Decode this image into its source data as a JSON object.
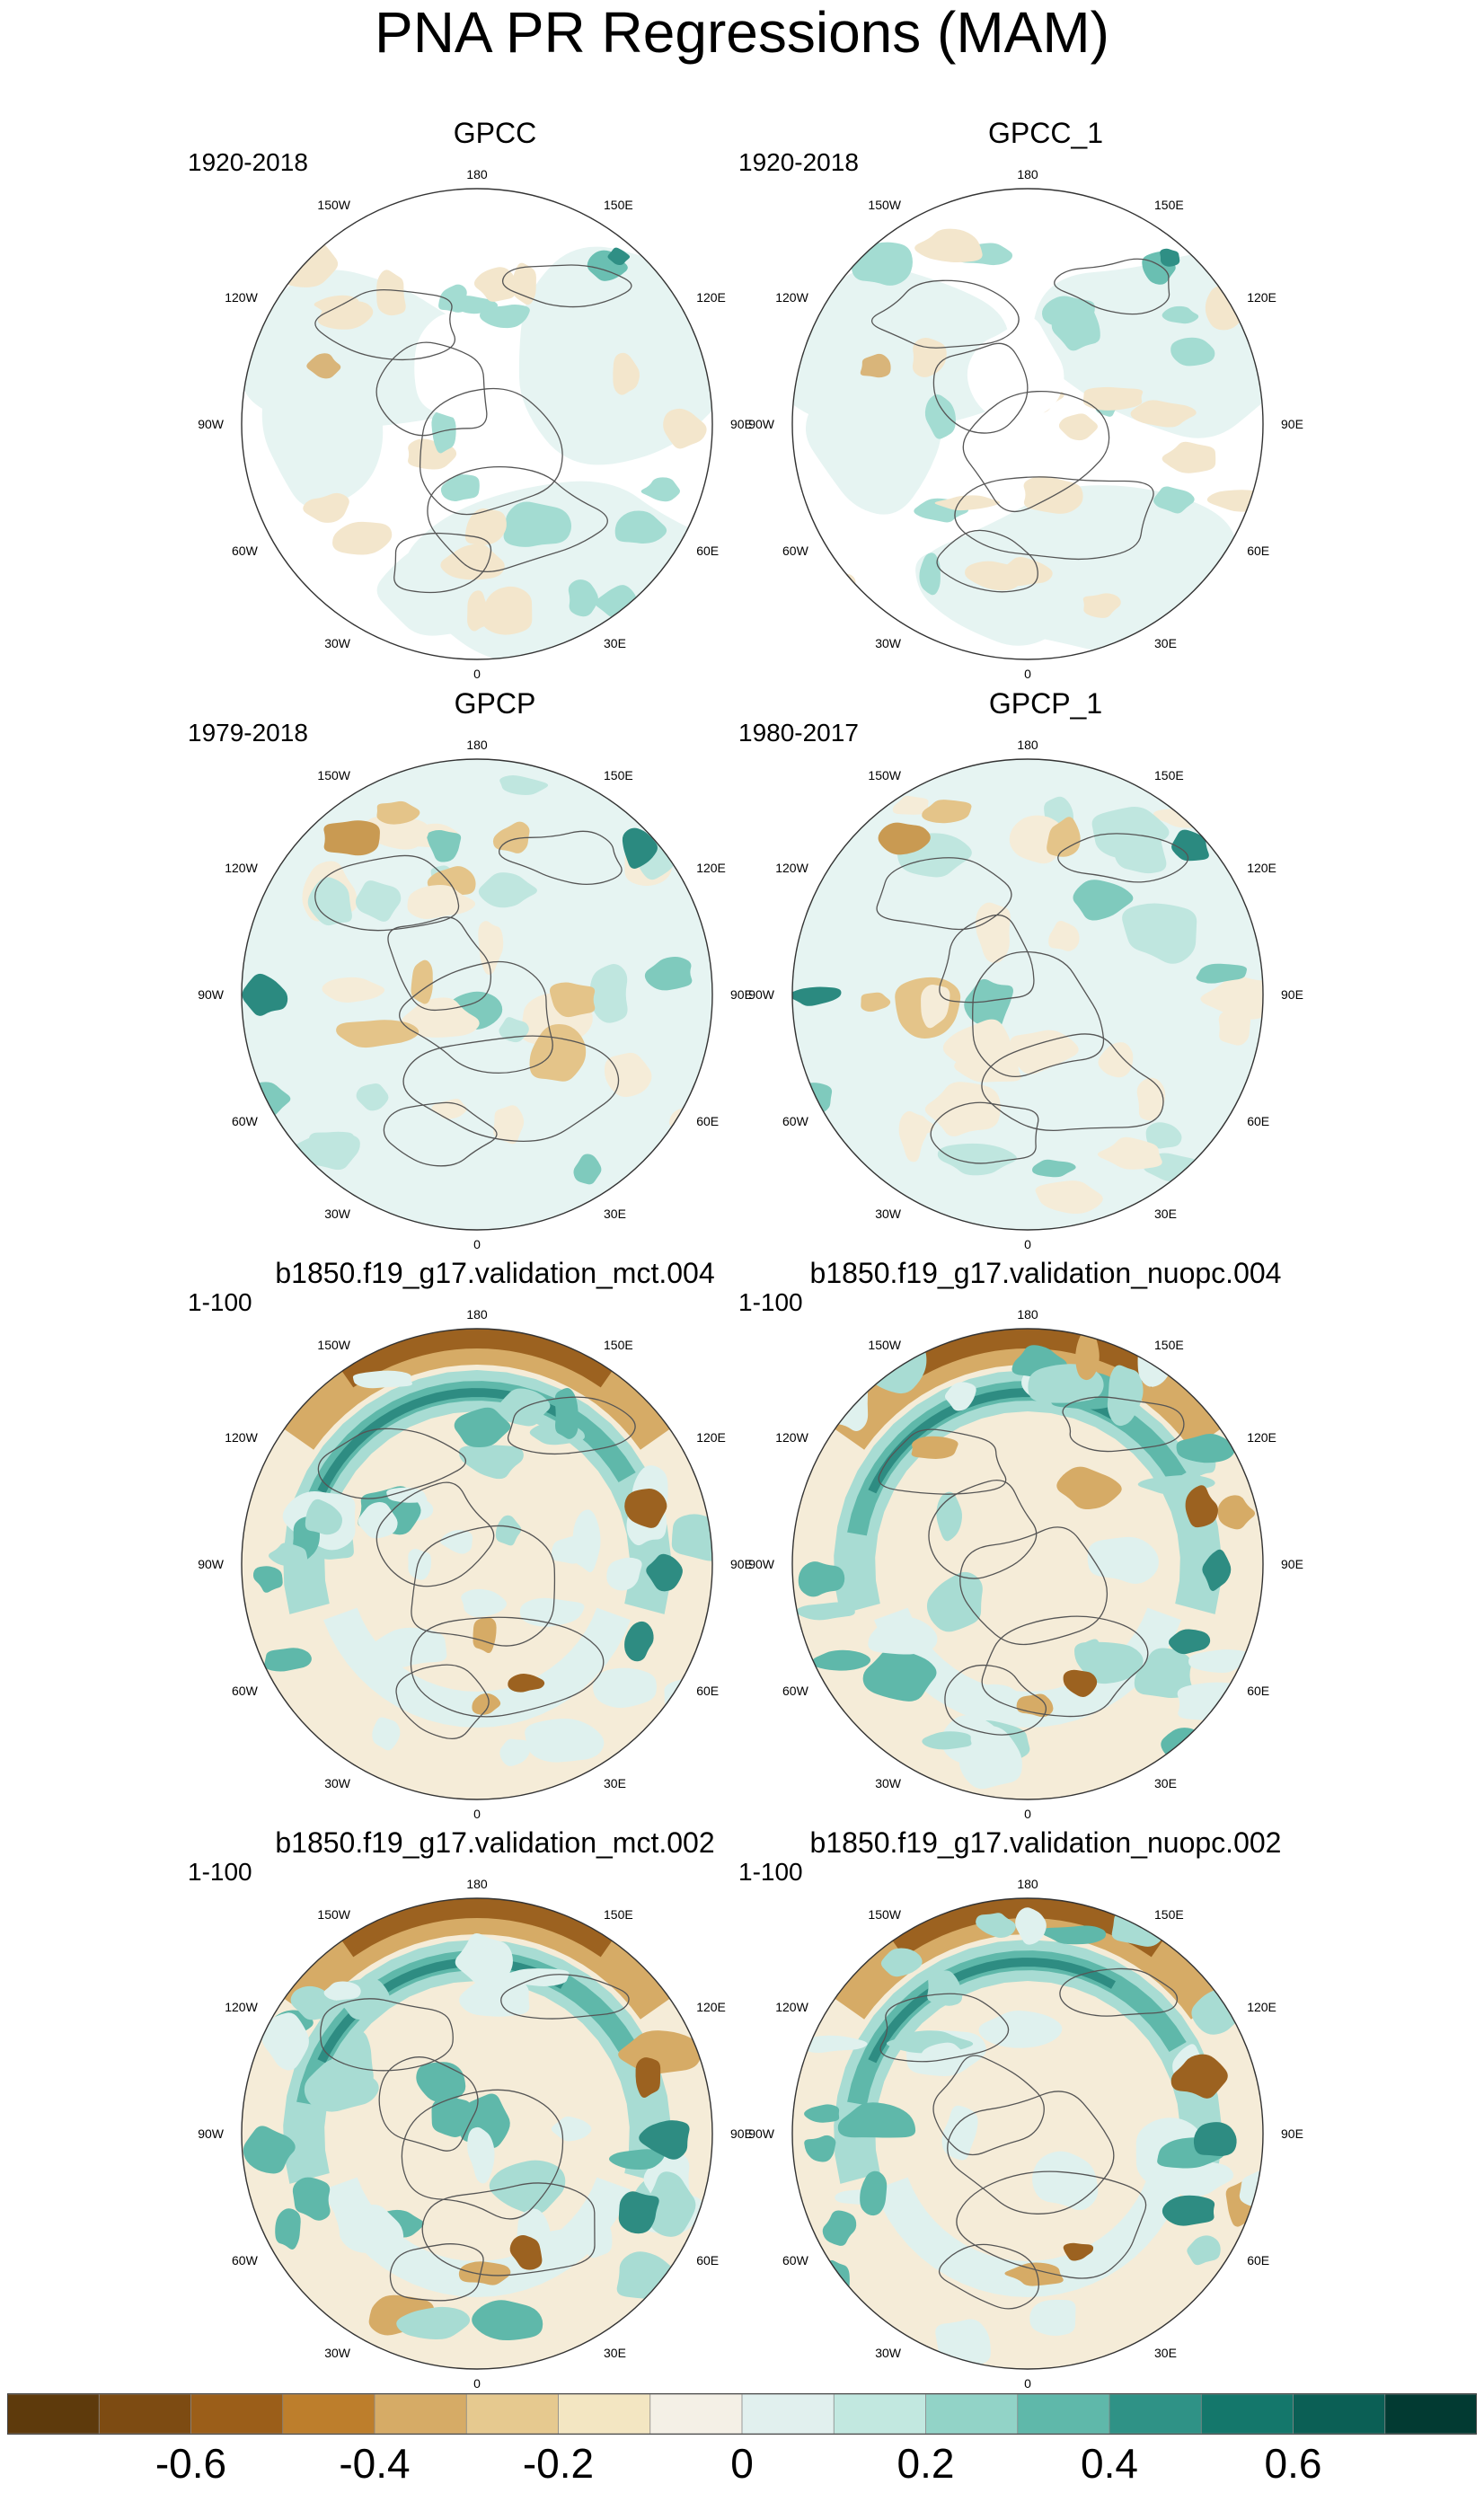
{
  "title": "PNA PR Regressions (MAM)",
  "lon_labels": [
    "180",
    "150E",
    "120E",
    "90E",
    "60E",
    "30E",
    "0",
    "30W",
    "60W",
    "90W",
    "120W",
    "150W"
  ],
  "panels": [
    {
      "title": "GPCC",
      "period": "1920-2018",
      "style": "land_obs",
      "colors": [
        "#e6f4f2",
        "#f3e6cc",
        "#a3dcd2",
        "#6abfb2",
        "#2f8f85",
        "#d9b57a"
      ]
    },
    {
      "title": "GPCC_1",
      "period": "1920-2018",
      "style": "land_obs",
      "colors": [
        "#e6f4f2",
        "#f3e6cc",
        "#a3dcd2",
        "#6abfb2",
        "#2f8f85",
        "#d9b57a"
      ]
    },
    {
      "title": "GPCP",
      "period": "1979-2018",
      "style": "global_obs",
      "colors": [
        "#e6f4f2",
        "#f5ecd8",
        "#bfe6df",
        "#7fcabd",
        "#2b8a80",
        "#e4c489",
        "#c99a52"
      ]
    },
    {
      "title": "GPCP_1",
      "period": "1980-2017",
      "style": "global_obs",
      "colors": [
        "#e6f4f2",
        "#f5ecd8",
        "#bfe6df",
        "#7fcabd",
        "#2b8a80",
        "#e4c489",
        "#c99a52"
      ]
    },
    {
      "title": "b1850.f19_g17.validation_mct.004",
      "period": "1-100",
      "style": "model",
      "colors": [
        "#f5ecd8",
        "#dff1ee",
        "#a8dcd3",
        "#5fb8aa",
        "#2e8c82",
        "#d6ab66",
        "#9c6220"
      ]
    },
    {
      "title": "b1850.f19_g17.validation_nuopc.004",
      "period": "1-100",
      "style": "model",
      "colors": [
        "#f5ecd8",
        "#dff1ee",
        "#a8dcd3",
        "#5fb8aa",
        "#2e8c82",
        "#d6ab66",
        "#9c6220"
      ]
    },
    {
      "title": "b1850.f19_g17.validation_mct.002",
      "period": "1-100",
      "style": "model",
      "colors": [
        "#f5ecd8",
        "#dff1ee",
        "#a8dcd3",
        "#5fb8aa",
        "#2e8c82",
        "#d6ab66",
        "#9c6220"
      ]
    },
    {
      "title": "b1850.f19_g17.validation_nuopc.002",
      "period": "1-100",
      "style": "model",
      "colors": [
        "#f5ecd8",
        "#dff1ee",
        "#a8dcd3",
        "#5fb8aa",
        "#2e8c82",
        "#d6ab66",
        "#9c6220"
      ]
    }
  ],
  "chart_data": {
    "type": "heatmap",
    "title": "PNA PR Regressions (MAM)",
    "projection": "north polar stereographic",
    "panels": [
      "GPCC",
      "GPCC_1",
      "GPCP",
      "GPCP_1",
      "b1850.f19_g17.validation_mct.004",
      "b1850.f19_g17.validation_nuopc.004",
      "b1850.f19_g17.validation_mct.002",
      "b1850.f19_g17.validation_nuopc.002"
    ],
    "periods": [
      "1920-2018",
      "1920-2018",
      "1979-2018",
      "1980-2017",
      "1-100",
      "1-100",
      "1-100",
      "1-100"
    ],
    "colorbar": {
      "levels": [
        -0.7,
        -0.6,
        -0.5,
        -0.4,
        -0.3,
        -0.2,
        -0.1,
        0,
        0.1,
        0.2,
        0.3,
        0.4,
        0.5,
        0.6,
        0.7
      ],
      "tick_values": [
        -0.6,
        -0.4,
        -0.2,
        0,
        0.2,
        0.4,
        0.6
      ],
      "tick_labels": [
        "-0.6",
        "-0.4",
        "-0.2",
        "0",
        "0.2",
        "0.4",
        "0.6"
      ],
      "colors": [
        "#5e3a0c",
        "#7d4b12",
        "#9b5e19",
        "#bd7e2c",
        "#d6ab66",
        "#e6c98f",
        "#f3e6c2",
        "#f4f0e6",
        "#e1f0ee",
        "#c2e8e0",
        "#92d3c7",
        "#5fb8aa",
        "#2f9286",
        "#14776b",
        "#0b5f55",
        "#023a32"
      ]
    }
  }
}
